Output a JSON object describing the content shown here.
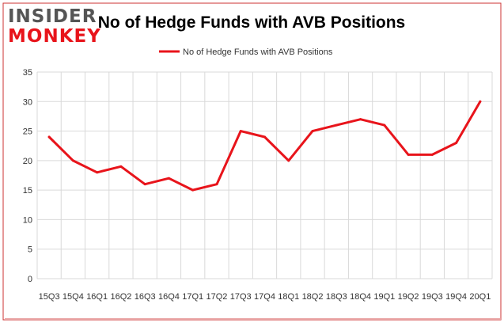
{
  "logo": {
    "line1": "INSIDER",
    "line2": "MONKEY"
  },
  "colors": {
    "series": "#e8141b",
    "logo_dark": "#555555",
    "logo_red": "#e8141b",
    "grid": "#d9d9d9",
    "axis_text": "#333333",
    "frame_border": "#cc3333"
  },
  "chart_data": {
    "type": "line",
    "title": "No of Hedge Funds with AVB Positions",
    "xlabel": "",
    "ylabel": "",
    "legend_position": "top-center",
    "grid": true,
    "ylim": [
      0,
      35
    ],
    "yticks": [
      0,
      5,
      10,
      15,
      20,
      25,
      30,
      35
    ],
    "categories": [
      "15Q3",
      "15Q4",
      "16Q1",
      "16Q2",
      "16Q3",
      "16Q4",
      "17Q1",
      "17Q2",
      "17Q3",
      "17Q4",
      "18Q1",
      "18Q2",
      "18Q3",
      "18Q4",
      "19Q1",
      "19Q2",
      "19Q3",
      "19Q4",
      "20Q1"
    ],
    "series": [
      {
        "name": "No of Hedge Funds with AVB Positions",
        "values": [
          24,
          20,
          18,
          19,
          16,
          17,
          15,
          16,
          25,
          24,
          20,
          25,
          26,
          27,
          26,
          21,
          21,
          23,
          30
        ]
      }
    ]
  }
}
